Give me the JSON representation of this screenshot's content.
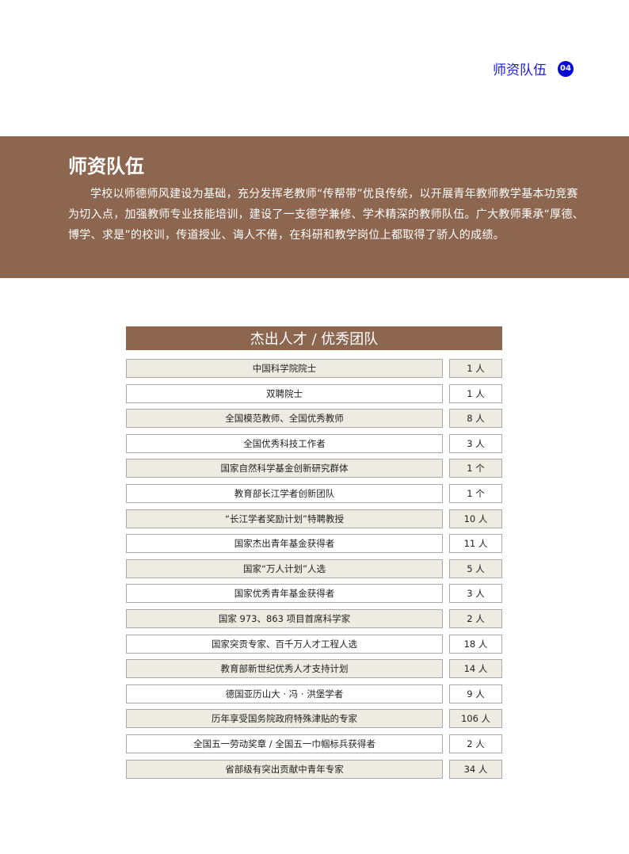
{
  "header": {
    "section": "师资队伍",
    "page_number": "04"
  },
  "banner": {
    "title": "师资队伍",
    "body": "学校以师德师风建设为基础，充分发挥老教师“传帮带”优良传统，以开展青年教师教学基本功竞赛为切入点，加强教师专业技能培训，建设了一支德学兼修、学术精深的教师队伍。广大教师秉承“厚德、博学、求是”的校训，传道授业、诲人不倦，在科研和教学岗位上都取得了骄人的成绩。"
  },
  "table": {
    "title": "杰出人才 / 优秀团队",
    "rows": [
      {
        "name": "中国科学院院士",
        "count": "1 人"
      },
      {
        "name": "双聘院士",
        "count": "1 人"
      },
      {
        "name": "全国模范教师、全国优秀教师",
        "count": "8 人"
      },
      {
        "name": "全国优秀科技工作者",
        "count": "3 人"
      },
      {
        "name": "国家自然科学基金创新研究群体",
        "count": "1 个"
      },
      {
        "name": "教育部长江学者创新团队",
        "count": "1 个"
      },
      {
        "name": "“长江学者奖励计划”特聘教授",
        "count": "10 人"
      },
      {
        "name": "国家杰出青年基金获得者",
        "count": "11 人"
      },
      {
        "name": "国家“万人计划”人选",
        "count": "5 人"
      },
      {
        "name": "国家优秀青年基金获得者",
        "count": "3 人"
      },
      {
        "name": "国家 973、863 项目首席科学家",
        "count": "2 人"
      },
      {
        "name": "国家突贡专家、百千万人才工程人选",
        "count": "18 人"
      },
      {
        "name": "教育部新世纪优秀人才支持计划",
        "count": "14 人"
      },
      {
        "name": "德国亚历山大 · 冯 · 洪堡学者",
        "count": "9 人"
      },
      {
        "name": "历年享受国务院政府特殊津贴的专家",
        "count": "106 人"
      },
      {
        "name": "全国五一劳动奖章 / 全国五一巾帼标兵获得者",
        "count": "2 人"
      },
      {
        "name": "省部级有突出贡献中青年专家",
        "count": "34 人"
      }
    ]
  },
  "colors": {
    "brand_brown": "#8c664f",
    "header_blue": "#1a1adb",
    "row_shade": "#eeebe2"
  }
}
